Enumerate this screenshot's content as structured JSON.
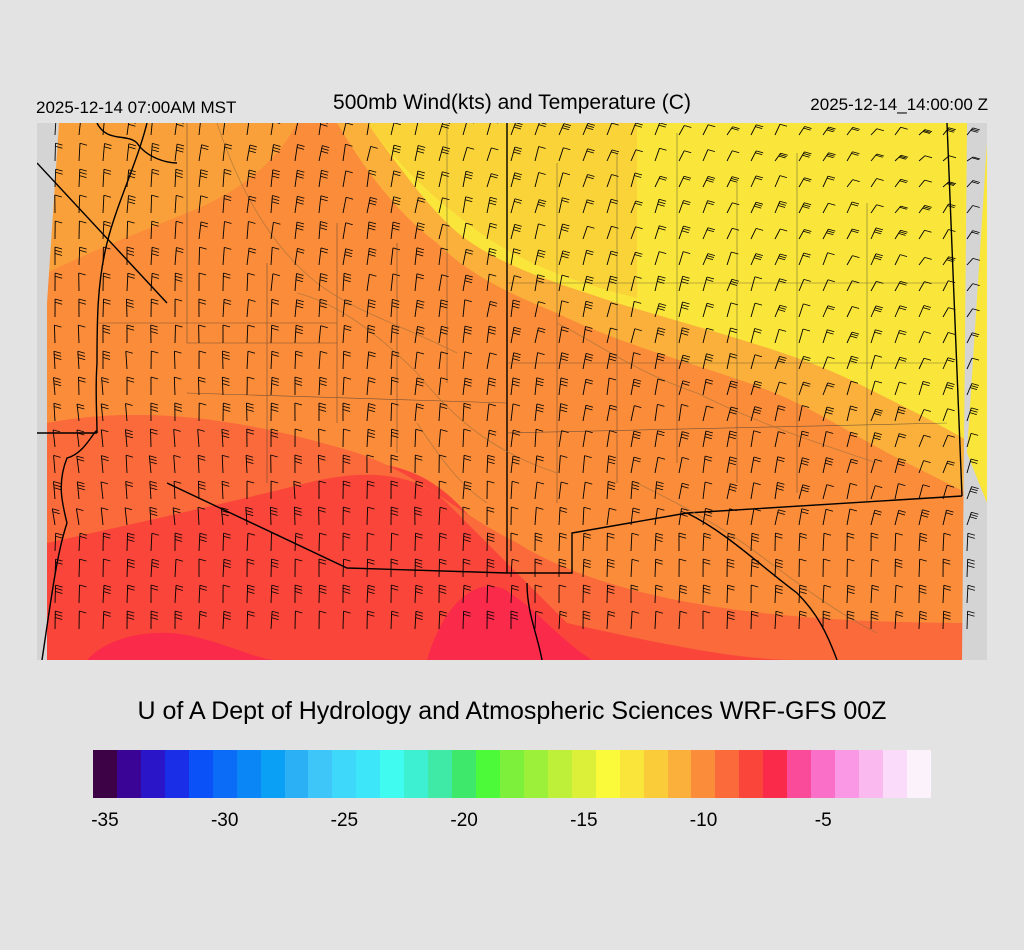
{
  "header": {
    "valid_local": "2025-12-14 07:00AM MST",
    "title": "500mb Wind(kts) and Temperature (C)",
    "valid_utc": "2025-12-14_14:00:00 Z"
  },
  "footer": {
    "credit": "U of A Dept of Hydrology and Atmospheric Sciences WRF-GFS 00Z"
  },
  "colorbar": {
    "colors": [
      "#3d0245",
      "#3a0597",
      "#2a15c8",
      "#1a2ee8",
      "#0a52f7",
      "#0a6cf7",
      "#0a86f7",
      "#0aa0f5",
      "#2bb0f5",
      "#3ec6f8",
      "#3ed8fa",
      "#3ee6fa",
      "#40fcf0",
      "#3ef0d2",
      "#3eeaa6",
      "#3ee86a",
      "#4cfa3a",
      "#7cf03a",
      "#9cf03a",
      "#bef03a",
      "#dcf03a",
      "#fafa3a",
      "#fae63a",
      "#facc3a",
      "#fab03a",
      "#fa8c3a",
      "#fa6a3a",
      "#fa463a",
      "#fa2a4a",
      "#fa4a9a",
      "#fa70c8",
      "#fa98e6",
      "#fabaf0",
      "#fadcfa",
      "#fcf2fc"
    ],
    "tick_labels": [
      "-35",
      "-30",
      "-25",
      "-20",
      "-15",
      "-10",
      "-5"
    ],
    "tick_values": [
      -35,
      -30,
      -25,
      -20,
      -15,
      -10,
      -5
    ],
    "min": -35.5,
    "max": -0.5
  },
  "map": {
    "region": "Southwest US / Northwest Mexico",
    "fields": {
      "temperature_fill_colors": [
        "#fa463a",
        "#fa6a3a",
        "#fa8c3a",
        "#fab03a",
        "#fae63a"
      ],
      "contour_color": "#a0703a",
      "border_color": "#000000",
      "barb_color": "#000000"
    }
  }
}
